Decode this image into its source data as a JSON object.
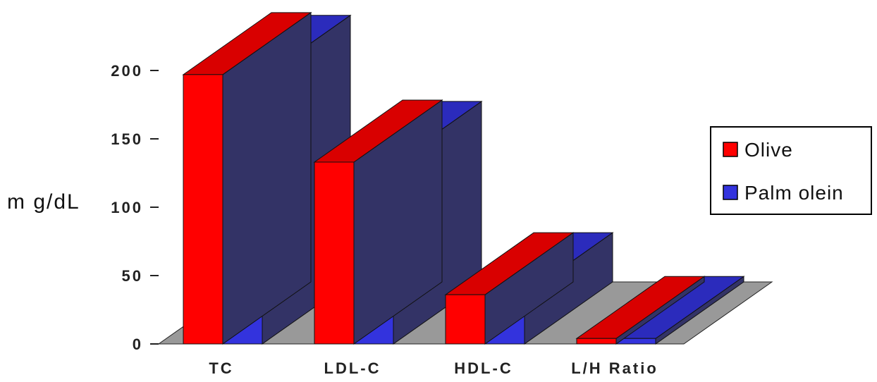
{
  "chart_data": {
    "type": "bar",
    "title": "",
    "xlabel": "",
    "ylabel": "m g/dL",
    "ylim": [
      0,
      200
    ],
    "yticks": [
      0,
      50,
      100,
      150,
      200
    ],
    "categories": [
      "TC",
      "LDL-C",
      "HDL-C",
      "L/H Ratio"
    ],
    "series": [
      {
        "name": "Olive",
        "values": [
          197,
          133,
          36,
          4
        ],
        "color": "#ff0000"
      },
      {
        "name": "Palm olein",
        "values": [
          195,
          132,
          36,
          4
        ],
        "color": "#3333dd"
      }
    ],
    "legend_position": "right",
    "grid": false,
    "floor_color": "#999999",
    "side_color": "#333366"
  }
}
